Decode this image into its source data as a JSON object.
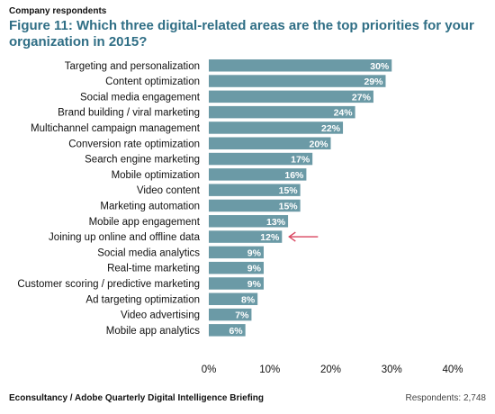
{
  "header": {
    "label": "Company respondents"
  },
  "title": "Figure 11: Which three digital-related areas are the top priorities for your organization in 2015?",
  "footer": {
    "source": "Econsultancy / Adobe Quarterly Digital Intelligence Briefing",
    "respondents": "Respondents: 2,748"
  },
  "colors": {
    "bar": "#6b9aa6",
    "bar_text": "#ffffff",
    "title": "#2f6e85",
    "arrow": "#d9455f"
  },
  "chart_data": {
    "type": "bar",
    "orientation": "horizontal",
    "title": "Figure 11: Which three digital-related areas are the top priorities for your organization in 2015?",
    "categories": [
      "Targeting and personalization",
      "Content optimization",
      "Social media engagement",
      "Brand building / viral marketing",
      "Multichannel campaign management",
      "Conversion rate optimization",
      "Search engine marketing",
      "Mobile optimization",
      "Video content",
      "Marketing automation",
      "Mobile app engagement",
      "Joining up online and offline data",
      "Social media analytics",
      "Real-time marketing",
      "Customer scoring / predictive marketing",
      "Ad targeting optimization",
      "Video advertising",
      "Mobile app analytics"
    ],
    "values": [
      30,
      29,
      27,
      24,
      22,
      20,
      17,
      16,
      15,
      15,
      13,
      12,
      9,
      9,
      9,
      8,
      7,
      6
    ],
    "data_labels": [
      "30%",
      "29%",
      "27%",
      "24%",
      "22%",
      "20%",
      "17%",
      "16%",
      "15%",
      "15%",
      "13%",
      "12%",
      "9%",
      "9%",
      "9%",
      "8%",
      "7%",
      "6%"
    ],
    "xlim": [
      0,
      40
    ],
    "xticks": [
      0,
      10,
      20,
      30,
      40
    ],
    "xtick_labels": [
      "0%",
      "10%",
      "20%",
      "30%",
      "40%"
    ],
    "grid": false,
    "highlight_index": 11,
    "highlight_mark": "arrow"
  }
}
